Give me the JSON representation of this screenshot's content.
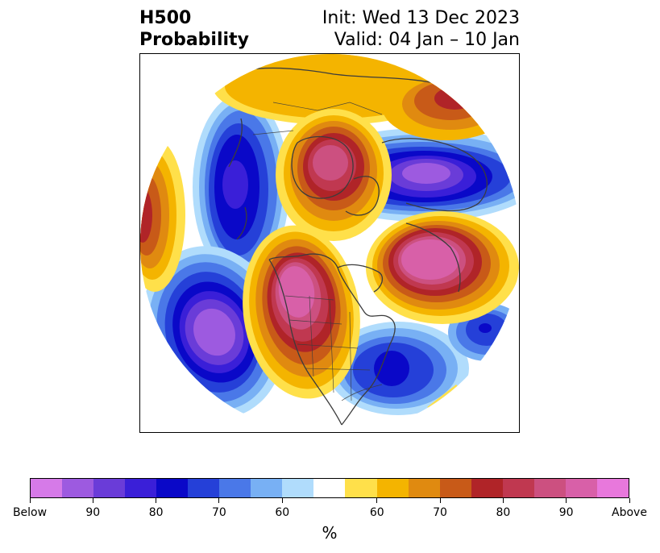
{
  "header": {
    "title_line1": "H500",
    "title_line2": "Probability",
    "init": "Init: Wed 13 Dec 2023",
    "valid": "Valid: 04 Jan – 10 Jan"
  },
  "map": {
    "projection": "north-polar-stereographic",
    "features": [
      "north-pole-centered-disc",
      "coastlines",
      "country-borders",
      "state-province-borders"
    ]
  },
  "anomaly_regions": [
    {
      "name": "western-north-america-positive",
      "category": "above",
      "peak": "Above"
    },
    {
      "name": "north-atlantic-greenland-positive",
      "category": "above",
      "peak": "Above"
    },
    {
      "name": "siberia-arctic-positive",
      "category": "above",
      "peak": "90"
    },
    {
      "name": "eurasia-arctic-negative",
      "category": "below",
      "peak": "Below"
    },
    {
      "name": "north-pacific-negative",
      "category": "below",
      "peak": "Below"
    },
    {
      "name": "east-asia-negative",
      "category": "below",
      "peak": "90"
    },
    {
      "name": "eastern-north-america-negative",
      "category": "below",
      "peak": "80"
    }
  ],
  "colorbar": {
    "colors": [
      "#d67ae8",
      "#9d5ae0",
      "#6a3cd8",
      "#3a1fd8",
      "#0a08c8",
      "#2540d8",
      "#4a78e8",
      "#78b0f4",
      "#b0dcfc",
      "#ffffff",
      "#ffe04a",
      "#f4b400",
      "#e08a10",
      "#c85a18",
      "#b02428",
      "#c03850",
      "#cc5080",
      "#d860a8",
      "#e878dc"
    ],
    "tick_labels": [
      "Below",
      "90",
      "80",
      "70",
      "60",
      "60",
      "70",
      "80",
      "90",
      "Above"
    ],
    "unit": "%"
  }
}
